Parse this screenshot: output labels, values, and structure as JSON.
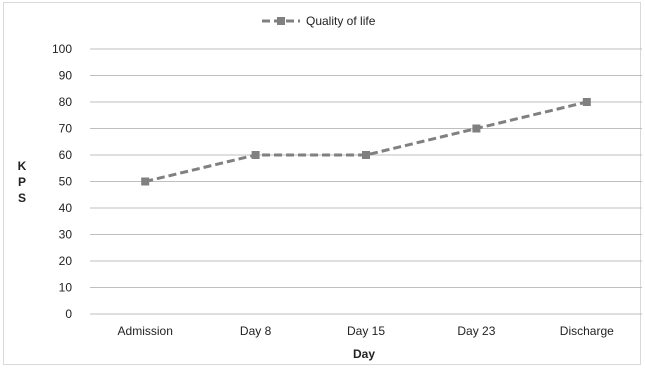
{
  "chart_data": {
    "type": "line",
    "categories": [
      "Admission",
      "Day 8",
      "Day 15",
      "Day 23",
      "Discharge"
    ],
    "series": [
      {
        "name": "Quality of life",
        "values": [
          50,
          60,
          60,
          70,
          80
        ],
        "color": "#808080",
        "style": "dashed",
        "marker": "square"
      }
    ],
    "xlabel": "Day",
    "ylabel": "KPS",
    "ylabel_letters": [
      "K",
      "P",
      "S"
    ],
    "ylim": [
      0,
      100
    ],
    "yticks": [
      "0",
      "10",
      "20",
      "30",
      "40",
      "50",
      "60",
      "70",
      "80",
      "90",
      "100"
    ],
    "grid": true,
    "gridline_color": "#bfbfbf",
    "legend_position": "top"
  }
}
